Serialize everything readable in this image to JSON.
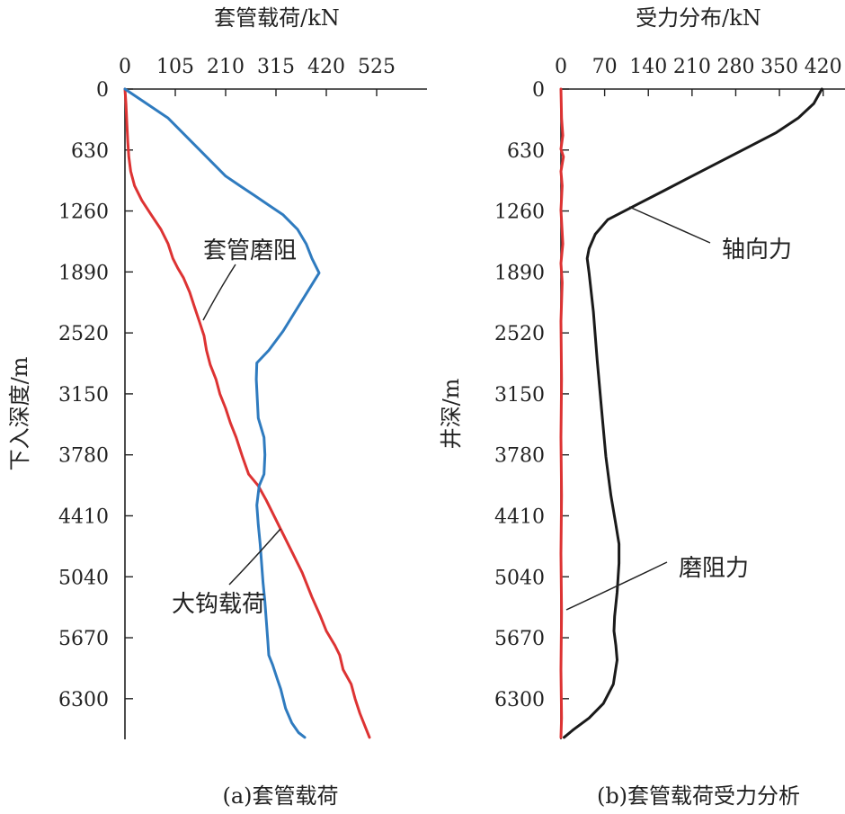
{
  "chart_data": [
    {
      "type": "line",
      "title": "套管载荷/kN",
      "ylabel": "下入深度/m",
      "caption": "(a)套管载荷",
      "xlim": [
        0,
        630
      ],
      "ylim": [
        0,
        6720
      ],
      "x_ticks": [
        "0",
        "105",
        "210",
        "315",
        "420",
        "525"
      ],
      "y_ticks": [
        "0",
        "630",
        "1260",
        "1890",
        "2520",
        "3150",
        "3780",
        "4410",
        "5040",
        "5670",
        "6300"
      ],
      "series": [
        {
          "name": "套管磨阻",
          "color": "#dd3333",
          "points": [
            [
              0,
              0
            ],
            [
              2,
              150
            ],
            [
              4,
              350
            ],
            [
              6,
              550
            ],
            [
              8,
              700
            ],
            [
              12,
              850
            ],
            [
              20,
              1000
            ],
            [
              35,
              1150
            ],
            [
              55,
              1300
            ],
            [
              75,
              1450
            ],
            [
              90,
              1600
            ],
            [
              100,
              1750
            ],
            [
              110,
              1850
            ],
            [
              122,
              1950
            ],
            [
              135,
              2100
            ],
            [
              145,
              2250
            ],
            [
              155,
              2400
            ],
            [
              165,
              2550
            ],
            [
              170,
              2700
            ],
            [
              178,
              2850
            ],
            [
              190,
              3000
            ],
            [
              198,
              3150
            ],
            [
              210,
              3300
            ],
            [
              220,
              3450
            ],
            [
              232,
              3600
            ],
            [
              245,
              3800
            ],
            [
              258,
              3980
            ],
            [
              278,
              4100
            ],
            [
              295,
              4250
            ],
            [
              310,
              4400
            ],
            [
              330,
              4600
            ],
            [
              350,
              4800
            ],
            [
              370,
              5000
            ],
            [
              390,
              5250
            ],
            [
              408,
              5450
            ],
            [
              420,
              5600
            ],
            [
              438,
              5750
            ],
            [
              448,
              5850
            ],
            [
              455,
              6000
            ],
            [
              472,
              6150
            ],
            [
              480,
              6300
            ],
            [
              490,
              6450
            ],
            [
              502,
              6600
            ],
            [
              510,
              6700
            ]
          ]
        },
        {
          "name": "大钩载荷",
          "color": "#2f7bbf",
          "points": [
            [
              0,
              0
            ],
            [
              30,
              100
            ],
            [
              60,
              200
            ],
            [
              90,
              300
            ],
            [
              120,
              450
            ],
            [
              150,
              600
            ],
            [
              180,
              750
            ],
            [
              210,
              900
            ],
            [
              240,
              1000
            ],
            [
              270,
              1100
            ],
            [
              300,
              1200
            ],
            [
              330,
              1300
            ],
            [
              360,
              1450
            ],
            [
              378,
              1600
            ],
            [
              390,
              1750
            ],
            [
              405,
              1900
            ],
            [
              380,
              2100
            ],
            [
              355,
              2300
            ],
            [
              330,
              2500
            ],
            [
              300,
              2700
            ],
            [
              275,
              2830
            ],
            [
              274,
              3000
            ],
            [
              276,
              3200
            ],
            [
              278,
              3400
            ],
            [
              290,
              3600
            ],
            [
              292,
              3780
            ],
            [
              290,
              3980
            ],
            [
              280,
              4100
            ],
            [
              275,
              4300
            ],
            [
              278,
              4500
            ],
            [
              282,
              4700
            ],
            [
              285,
              4900
            ],
            [
              288,
              5100
            ],
            [
              292,
              5300
            ],
            [
              295,
              5500
            ],
            [
              298,
              5700
            ],
            [
              300,
              5850
            ],
            [
              308,
              5950
            ],
            [
              318,
              6100
            ],
            [
              325,
              6200
            ],
            [
              335,
              6400
            ],
            [
              348,
              6550
            ],
            [
              362,
              6650
            ],
            [
              375,
              6700
            ]
          ]
        }
      ],
      "annotations": [
        {
          "text": "套管磨阻",
          "series": "套管磨阻"
        },
        {
          "text": "大钩载荷",
          "series": "大钩载荷"
        }
      ]
    },
    {
      "type": "line",
      "title": "受力分布/kN",
      "ylabel": "井深/m",
      "caption": "(b)套管载荷受力分析",
      "xlim": [
        0,
        455
      ],
      "ylim": [
        0,
        6720
      ],
      "x_ticks": [
        "0",
        "70",
        "140",
        "210",
        "280",
        "350",
        "420"
      ],
      "y_ticks": [
        "0",
        "630",
        "1260",
        "1890",
        "2520",
        "3150",
        "3780",
        "4410",
        "5040",
        "5670",
        "6300"
      ],
      "series": [
        {
          "name": "轴向力",
          "color": "#1a1a1a",
          "points": [
            [
              418,
              0
            ],
            [
              405,
              150
            ],
            [
              380,
              300
            ],
            [
              345,
              450
            ],
            [
              300,
              600
            ],
            [
              255,
              750
            ],
            [
              210,
              900
            ],
            [
              165,
              1050
            ],
            [
              120,
              1200
            ],
            [
              75,
              1350
            ],
            [
              55,
              1500
            ],
            [
              45,
              1650
            ],
            [
              42,
              1750
            ],
            [
              45,
              1900
            ],
            [
              52,
              2300
            ],
            [
              58,
              2800
            ],
            [
              65,
              3300
            ],
            [
              72,
              3800
            ],
            [
              80,
              4200
            ],
            [
              88,
              4500
            ],
            [
              93,
              4700
            ],
            [
              93,
              4900
            ],
            [
              90,
              5200
            ],
            [
              86,
              5450
            ],
            [
              85,
              5600
            ],
            [
              88,
              5750
            ],
            [
              90,
              5900
            ],
            [
              84,
              6150
            ],
            [
              68,
              6350
            ],
            [
              45,
              6500
            ],
            [
              20,
              6620
            ],
            [
              5,
              6700
            ]
          ]
        },
        {
          "name": "磨阻力",
          "color": "#dd3333",
          "points": [
            [
              0,
              0
            ],
            [
              1,
              300
            ],
            [
              3,
              480
            ],
            [
              0,
              620
            ],
            [
              4,
              700
            ],
            [
              0,
              850
            ],
            [
              2,
              1000
            ],
            [
              0,
              1250
            ],
            [
              3,
              1600
            ],
            [
              0,
              1800
            ],
            [
              2,
              2000
            ],
            [
              0,
              2400
            ],
            [
              1,
              3000
            ],
            [
              0,
              3600
            ],
            [
              1,
              4200
            ],
            [
              0,
              4800
            ],
            [
              1,
              5400
            ],
            [
              0,
              6000
            ],
            [
              1,
              6500
            ],
            [
              0,
              6700
            ]
          ]
        }
      ],
      "annotations": [
        {
          "text": "轴向力",
          "series": "轴向力"
        },
        {
          "text": "磨阻力",
          "series": "磨阻力"
        }
      ]
    }
  ]
}
